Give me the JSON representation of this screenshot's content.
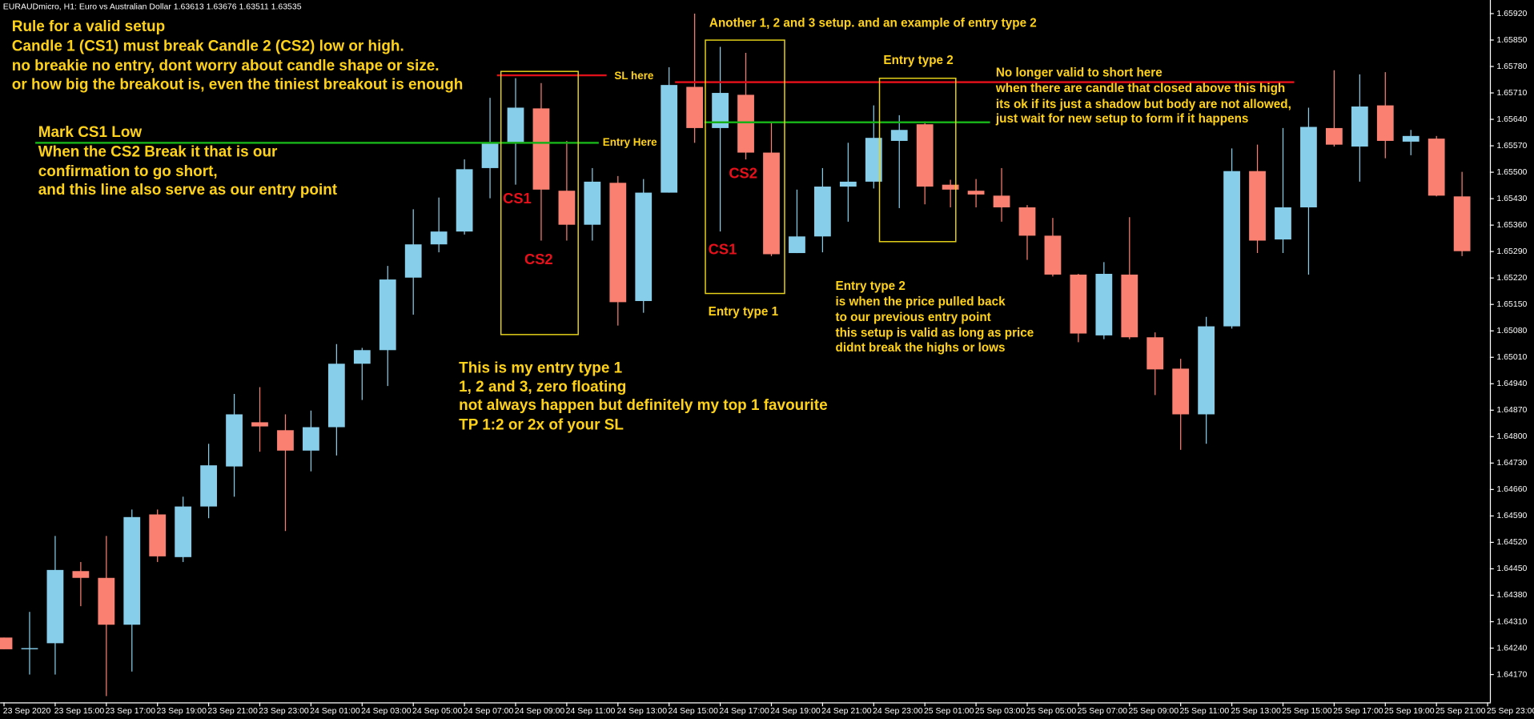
{
  "chart_data": {
    "type": "candlestick",
    "title": "EURAUDmicro, H1:  Euro vs Australian Dollar  1.63613 1.63676 1.63511 1.63535",
    "categories": [
      "23 Sep 2020",
      null,
      "23 Sep 15:00",
      null,
      "23 Sep 17:00",
      null,
      "23 Sep 19:00",
      null,
      "23 Sep 21:00",
      null,
      "23 Sep 23:00",
      null,
      "24 Sep 01:00",
      null,
      "24 Sep 03:00",
      null,
      "24 Sep 05:00",
      null,
      "24 Sep 07:00",
      null,
      "24 Sep 09:00",
      null,
      "24 Sep 11:00",
      null,
      "24 Sep 13:00",
      null,
      "24 Sep 15:00",
      null,
      "24 Sep 17:00",
      null,
      "24 Sep 19:00",
      null,
      "24 Sep 21:00",
      null,
      "24 Sep 23:00",
      null,
      "25 Sep 01:00",
      null,
      "25 Sep 03:00",
      null,
      "25 Sep 05:00",
      null,
      "25 Sep 07:00",
      null,
      "25 Sep 09:00",
      null,
      "25 Sep 11:00",
      null,
      "25 Sep 13:00",
      null,
      "25 Sep 15:00",
      null,
      "25 Sep 17:00",
      null,
      "25 Sep 19:00",
      null,
      "25 Sep 21:00",
      null,
      "25 Sep 23:00"
    ],
    "open": [
      1.64268,
      1.64237,
      1.64253,
      1.64444,
      1.64426,
      1.64302,
      1.64594,
      1.64481,
      1.64615,
      1.64721,
      1.64838,
      1.64817,
      1.64763,
      1.64825,
      1.64993,
      1.65029,
      1.65221,
      1.65309,
      1.65343,
      1.65511,
      1.65578,
      1.65669,
      1.65451,
      1.65361,
      1.65472,
      1.65159,
      1.65446,
      1.65726,
      1.65617,
      1.65705,
      1.65552,
      1.65286,
      1.6533,
      1.65462,
      1.65475,
      1.65583,
      1.65627,
      1.65467,
      1.65451,
      1.65438,
      1.65407,
      1.65332,
      1.65229,
      1.65068,
      1.65229,
      1.65063,
      1.6498,
      1.64859,
      1.65092,
      1.65503,
      1.65322,
      1.65407,
      1.65617,
      1.65568,
      1.65677,
      1.65581,
      1.65589,
      1.65436,
      null
    ],
    "high": [
      1.64268,
      1.64336,
      1.64537,
      1.64468,
      1.64537,
      1.64607,
      1.64607,
      1.64641,
      1.64781,
      1.64913,
      1.64931,
      1.64859,
      1.64869,
      1.65045,
      1.65035,
      1.65252,
      1.65402,
      1.65433,
      1.65534,
      1.65697,
      1.65749,
      1.65736,
      1.65583,
      1.65511,
      1.6549,
      1.65482,
      1.65778,
      1.6592,
      1.65832,
      1.65816,
      1.65633,
      1.65454,
      1.65511,
      1.65578,
      1.65677,
      1.65651,
      1.65635,
      1.6548,
      1.65482,
      1.65511,
      1.65413,
      1.65379,
      1.65231,
      1.65262,
      1.65381,
      1.65076,
      1.65006,
      1.65117,
      1.65563,
      1.65573,
      1.65617,
      1.65671,
      1.6577,
      1.65759,
      1.65765,
      1.65612,
      1.65596,
      1.65501,
      null
    ],
    "low": [
      1.64237,
      1.6417,
      1.6417,
      1.64351,
      1.64113,
      1.64178,
      1.64468,
      1.64468,
      1.64584,
      1.64641,
      1.6476,
      1.6455,
      1.64708,
      1.6475,
      1.64897,
      1.64934,
      1.65123,
      1.65288,
      1.65335,
      1.65431,
      1.65467,
      1.65319,
      1.65319,
      1.65319,
      1.65094,
      1.65128,
      1.65446,
      1.65578,
      1.65343,
      1.65534,
      1.65278,
      1.65286,
      1.65288,
      1.65369,
      1.65457,
      1.65405,
      1.65415,
      1.65407,
      1.65407,
      1.65369,
      1.65268,
      1.65224,
      1.6505,
      1.65058,
      1.65058,
      1.6491,
      1.64765,
      1.64781,
      1.65086,
      1.65286,
      1.65286,
      1.65229,
      1.65568,
      1.65475,
      1.65537,
      1.65545,
      1.65436,
      1.65278,
      null
    ],
    "close": [
      1.64237,
      1.6424,
      1.64447,
      1.64426,
      1.64302,
      1.64587,
      1.64483,
      1.64615,
      1.64724,
      1.64859,
      1.64827,
      1.64763,
      1.64825,
      1.64993,
      1.65029,
      1.65216,
      1.65309,
      1.65343,
      1.65508,
      1.65578,
      1.65671,
      1.65454,
      1.65361,
      1.65475,
      1.65156,
      1.65446,
      1.65731,
      1.65617,
      1.6571,
      1.65552,
      1.65283,
      1.6533,
      1.65462,
      1.65475,
      1.65591,
      1.65612,
      1.65462,
      1.65454,
      1.65441,
      1.65407,
      1.65332,
      1.65229,
      1.65073,
      1.65231,
      1.65063,
      1.64978,
      1.64859,
      1.65092,
      1.65503,
      1.65319,
      1.65407,
      1.6562,
      1.65573,
      1.65674,
      1.65583,
      1.65596,
      1.65438,
      1.65291,
      null
    ],
    "up_color": "#87ceeb",
    "down_color": "#fa8072",
    "ylim": [
      1.64099,
      1.65956
    ],
    "yticks": [
      {
        "value": 1.6592,
        "label": "1.65920"
      },
      {
        "value": 1.6585,
        "label": "1.65850"
      },
      {
        "value": 1.6578,
        "label": "1.65780"
      },
      {
        "value": 1.6571,
        "label": "1.65710"
      },
      {
        "value": 1.6564,
        "label": "1.65640"
      },
      {
        "value": 1.6557,
        "label": "1.65570"
      },
      {
        "value": 1.655,
        "label": "1.65500"
      },
      {
        "value": 1.6543,
        "label": "1.65430"
      },
      {
        "value": 1.6536,
        "label": "1.65360"
      },
      {
        "value": 1.6529,
        "label": "1.65290"
      },
      {
        "value": 1.6522,
        "label": "1.65220"
      },
      {
        "value": 1.6515,
        "label": "1.65150"
      },
      {
        "value": 1.6508,
        "label": "1.65080"
      },
      {
        "value": 1.6501,
        "label": "1.65010"
      },
      {
        "value": 1.6494,
        "label": "1.64940"
      },
      {
        "value": 1.6487,
        "label": "1.64870"
      },
      {
        "value": 1.648,
        "label": "1.64800"
      },
      {
        "value": 1.6473,
        "label": "1.64730"
      },
      {
        "value": 1.6466,
        "label": "1.64660"
      },
      {
        "value": 1.6459,
        "label": "1.64590"
      },
      {
        "value": 1.6452,
        "label": "1.64520"
      },
      {
        "value": 1.6445,
        "label": "1.64450"
      },
      {
        "value": 1.6438,
        "label": "1.64380"
      },
      {
        "value": 1.6431,
        "label": "1.64310"
      },
      {
        "value": 1.6424,
        "label": "1.64240"
      },
      {
        "value": 1.6417,
        "label": "1.64170"
      }
    ],
    "grid": false,
    "annotations": [
      "Rule for a valid setup",
      "Candle 1 (CS1) must break Candle 2 (CS2) low or high.",
      "no breakie no entry, dont worry about candle shape or size.",
      "or how big the breakout is, even the tiniest breakout is enough",
      "Mark CS1 Low",
      "When the CS2 Break it that is our",
      "confirmation to go short,",
      "and this line also serve as our entry point",
      "SL here",
      "Entry Here",
      "CS1",
      "CS2",
      "This is my entry type 1",
      "1, 2 and 3, zero floating",
      "not always happen but definitely my top 1 favourite",
      "TP 1:2 or 2x of your SL",
      "Another 1, 2 and 3 setup. and an example of entry type 2",
      "Entry type 2",
      "No longer valid to short here",
      "when there are candle that closed above this high",
      "its ok if its just a shadow but body are not allowed,",
      "just wait for new setup to form if it happens",
      "CS2",
      "CS1",
      "Entry type 1",
      "Entry type 2",
      "is when the price pulled back",
      "to our previous entry point",
      "this setup is valid as long as price",
      "didnt break the highs or lows"
    ]
  }
}
